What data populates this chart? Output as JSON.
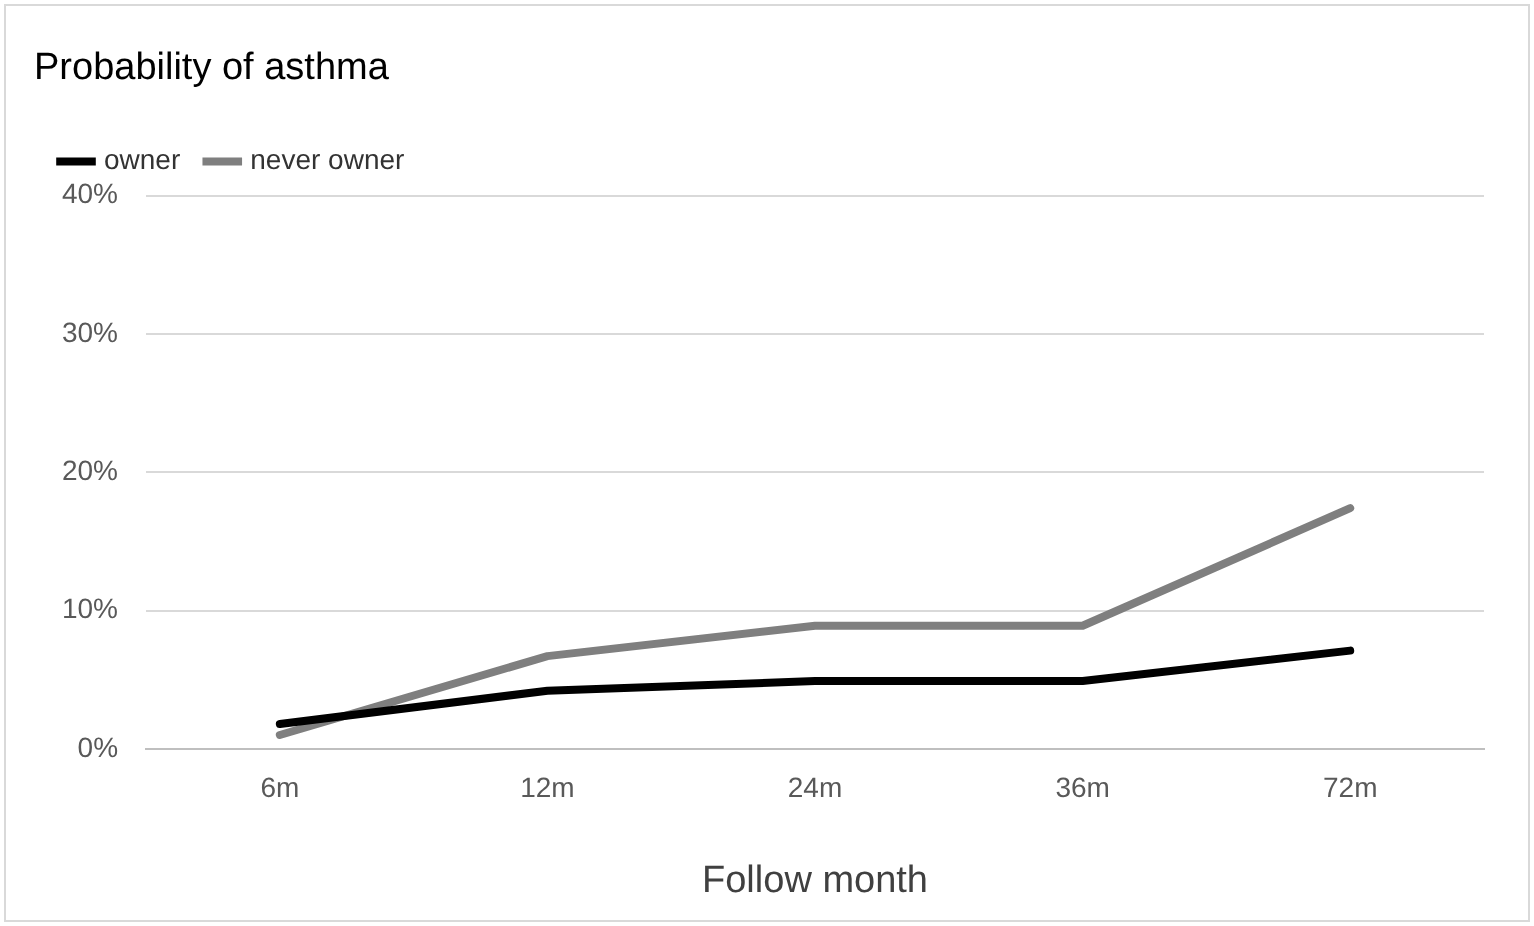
{
  "chart_data": {
    "type": "line",
    "title": "Probability of asthma",
    "xlabel": "Follow month",
    "categories": [
      "6m",
      "12m",
      "24m",
      "36m",
      "72m"
    ],
    "series": [
      {
        "name": "owner",
        "color": "#000000",
        "values": [
          1.8,
          4.2,
          4.9,
          4.9,
          7.1
        ]
      },
      {
        "name": "never owner",
        "color": "#7f7f7f",
        "values": [
          1.0,
          6.7,
          8.9,
          8.9,
          17.4
        ]
      }
    ],
    "ylim": [
      0,
      40
    ],
    "yticks": [
      {
        "value": 0,
        "label": "0%"
      },
      {
        "value": 10,
        "label": "10%"
      },
      {
        "value": 20,
        "label": "20%"
      },
      {
        "value": 30,
        "label": "30%"
      },
      {
        "value": 40,
        "label": "40%"
      }
    ],
    "grid": "y",
    "legend": "top left",
    "marker": "none",
    "line_style": "solid"
  }
}
